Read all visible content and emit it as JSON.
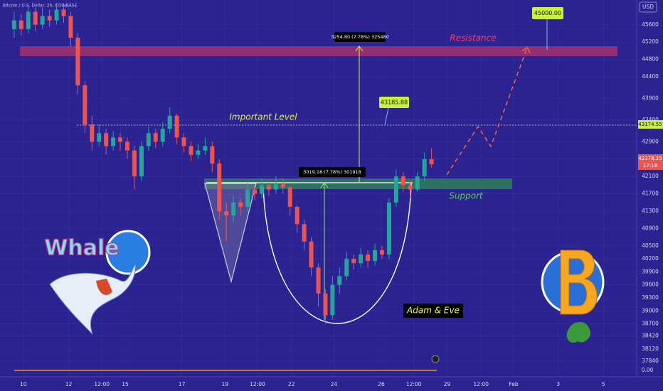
{
  "chart_data": {
    "type": "candlestick",
    "title": "Bitcoin / U.S. Dollar, 2h, COINBASE",
    "currency": "USD",
    "up_color": "#26a69a",
    "down_color": "#ef5350",
    "x": [
      2,
      3,
      4,
      5,
      6,
      7,
      8,
      9,
      10,
      11,
      12,
      13,
      14,
      15,
      16,
      17,
      18,
      19,
      20,
      21,
      22,
      23,
      24,
      25,
      26,
      27,
      28,
      29,
      30,
      31,
      32,
      33,
      34,
      35,
      36,
      37,
      38,
      39,
      40,
      41,
      42,
      43,
      44,
      45,
      46,
      47,
      48,
      49,
      50,
      51,
      52,
      53,
      54,
      55,
      56,
      57,
      58,
      59,
      60,
      61
    ],
    "open": [
      45500,
      45700,
      45500,
      45900,
      45600,
      45800,
      45700,
      45950,
      45800,
      45300,
      44200,
      43300,
      42900,
      43100,
      42800,
      43000,
      42900,
      42700,
      42100,
      42800,
      43100,
      42900,
      43200,
      43500,
      43000,
      42800,
      42600,
      42700,
      42800,
      42400,
      41300,
      41200,
      41500,
      41400,
      41800,
      41700,
      41900,
      41800,
      41950,
      41850,
      41400,
      41000,
      40600,
      40000,
      39400,
      38900,
      39600,
      39800,
      40200,
      40100,
      40300,
      40150,
      40400,
      40300,
      41500,
      42100,
      41900,
      41800,
      42100,
      42500
    ],
    "high": [
      45900,
      45850,
      46050,
      46000,
      46000,
      45950,
      46100,
      46050,
      45900,
      45400,
      44300,
      43500,
      43300,
      43200,
      43150,
      43100,
      43000,
      42800,
      42900,
      43250,
      43200,
      43350,
      43700,
      43550,
      43100,
      42900,
      42850,
      43000,
      42900,
      42500,
      41500,
      41650,
      41600,
      41950,
      41900,
      42050,
      42000,
      42100,
      42050,
      41900,
      41450,
      41100,
      40700,
      40100,
      39500,
      39800,
      40000,
      40350,
      40300,
      40450,
      40400,
      40550,
      40500,
      41600,
      42250,
      42200,
      42000,
      42200,
      42650,
      42750
    ],
    "low": [
      45300,
      45350,
      45400,
      45450,
      45500,
      45550,
      45600,
      45650,
      45100,
      44000,
      43100,
      42700,
      42800,
      42600,
      42700,
      42700,
      42500,
      41800,
      42000,
      42700,
      42750,
      42800,
      43100,
      42850,
      42650,
      42450,
      42500,
      42600,
      42200,
      41100,
      40600,
      41050,
      41200,
      41300,
      41550,
      41600,
      41650,
      41700,
      41700,
      41200,
      40800,
      40400,
      39800,
      39100,
      38700,
      38800,
      39400,
      39700,
      39950,
      40000,
      40000,
      40050,
      40200,
      40200,
      41400,
      41750,
      41600,
      41750,
      42000,
      42300
    ],
    "close": [
      45700,
      45500,
      45900,
      45600,
      45800,
      45700,
      45950,
      45800,
      45300,
      44200,
      43300,
      42900,
      43100,
      42800,
      43000,
      42900,
      42700,
      42100,
      42800,
      43100,
      42900,
      43200,
      43500,
      43000,
      42800,
      42600,
      42700,
      42800,
      42400,
      41300,
      41200,
      41500,
      41400,
      41800,
      41700,
      41900,
      41800,
      41950,
      41850,
      41400,
      41000,
      40600,
      40000,
      39400,
      38900,
      39600,
      39800,
      40200,
      40100,
      40300,
      40150,
      40400,
      40300,
      41500,
      42100,
      41900,
      41800,
      42100,
      42500,
      42380
    ],
    "xlim": [
      0,
      90
    ],
    "xticks": [
      {
        "value": 3.3,
        "label": "10"
      },
      {
        "value": 9.7,
        "label": "12"
      },
      {
        "value": 14.4,
        "label": "12:00"
      },
      {
        "value": 17.7,
        "label": "15"
      },
      {
        "value": 25.7,
        "label": "17"
      },
      {
        "value": 31.8,
        "label": "19"
      },
      {
        "value": 36.4,
        "label": "12:00"
      },
      {
        "value": 41.2,
        "label": "22"
      },
      {
        "value": 47.2,
        "label": "24"
      },
      {
        "value": 53.9,
        "label": "26"
      },
      {
        "value": 58.5,
        "label": "12:00"
      },
      {
        "value": 63.2,
        "label": "29"
      },
      {
        "value": 68,
        "label": "12:00"
      },
      {
        "value": 72.6,
        "label": "Feb"
      },
      {
        "value": 78.9,
        "label": "3"
      },
      {
        "value": 85.3,
        "label": "5"
      }
    ],
    "ylim": [
      37480,
      46170
    ],
    "yticks": [
      45600,
      45200,
      44800,
      44400,
      43900,
      43400,
      42900,
      42500,
      42100,
      41700,
      41300,
      40900,
      40500,
      40200,
      39900,
      39600,
      39300,
      39000,
      38700,
      38420,
      38120,
      37840
    ],
    "annotations": {
      "resistance": "Resistance",
      "important_level": "Important Level",
      "support": "Support",
      "pattern": "Adam & Eve",
      "logo": "Whale",
      "upper_measure": "3254.80 (7.78%) 325480",
      "lower_measure": "3019.18 (7.78%) 301918",
      "level_label": "43185.88",
      "target_label": "45000.00",
      "axis_level_label": "43174.55",
      "last_price_label": "42378.25",
      "countdown": "17:18",
      "volume_label": "0.00"
    }
  }
}
